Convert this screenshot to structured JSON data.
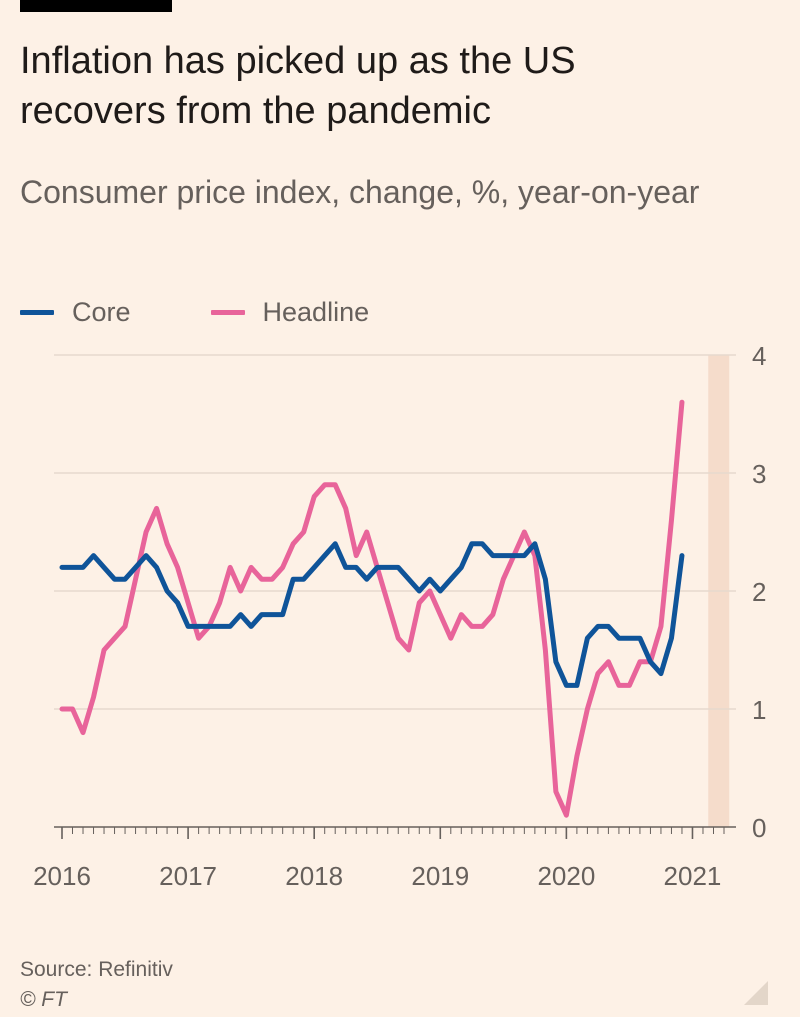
{
  "header": {
    "title": "Inflation has picked up as the US recovers from the pandemic",
    "subtitle": "Consumer price index, change, %, year-on-year"
  },
  "legend": {
    "core": {
      "label": "Core",
      "color": "#0f5499"
    },
    "headline": {
      "label": "Headline",
      "color": "#e8649a"
    }
  },
  "footer": {
    "source": "Source: Refinitiv",
    "copyright": "© FT"
  },
  "chart_data": {
    "type": "line",
    "x_start": "2016-01",
    "x_end": "2021-04",
    "x_ticks": [
      "2016",
      "2017",
      "2018",
      "2019",
      "2020",
      "2021"
    ],
    "ylim": [
      0,
      4
    ],
    "y_ticks": [
      "0",
      "1",
      "2",
      "3",
      "4"
    ],
    "grid": true,
    "legend_position": "top-left",
    "highlight_band": {
      "from": "2021-03",
      "to": "2021-04",
      "color": "#f5dccb"
    },
    "series": [
      {
        "name": "Core",
        "color": "#0f5499",
        "values": [
          2.2,
          2.2,
          2.2,
          2.3,
          2.2,
          2.1,
          2.1,
          2.2,
          2.3,
          2.2,
          2.0,
          1.9,
          1.7,
          1.7,
          1.7,
          1.7,
          1.7,
          1.8,
          1.7,
          1.8,
          1.8,
          1.8,
          2.1,
          2.1,
          2.2,
          2.3,
          2.4,
          2.2,
          2.2,
          2.1,
          2.2,
          2.2,
          2.2,
          2.1,
          2.0,
          2.1,
          2.0,
          2.1,
          2.2,
          2.4,
          2.4,
          2.3,
          2.3,
          2.3,
          2.3,
          2.4,
          2.1,
          1.4,
          1.2,
          1.2,
          1.6,
          1.7,
          1.7,
          1.6,
          1.6,
          1.6,
          1.4,
          1.3,
          1.6,
          2.3
        ]
      },
      {
        "name": "Headline",
        "color": "#e8649a",
        "values": [
          1.0,
          1.0,
          0.8,
          1.1,
          1.5,
          1.6,
          1.7,
          2.1,
          2.5,
          2.7,
          2.4,
          2.2,
          1.9,
          1.6,
          1.7,
          1.9,
          2.2,
          2.0,
          2.2,
          2.1,
          2.1,
          2.2,
          2.4,
          2.5,
          2.8,
          2.9,
          2.9,
          2.7,
          2.3,
          2.5,
          2.2,
          1.9,
          1.6,
          1.5,
          1.9,
          2.0,
          1.8,
          1.6,
          1.8,
          1.7,
          1.7,
          1.8,
          2.1,
          2.3,
          2.5,
          2.3,
          1.5,
          0.3,
          0.1,
          0.6,
          1.0,
          1.3,
          1.4,
          1.2,
          1.2,
          1.4,
          1.4,
          1.7,
          2.6,
          3.6
        ]
      }
    ]
  }
}
